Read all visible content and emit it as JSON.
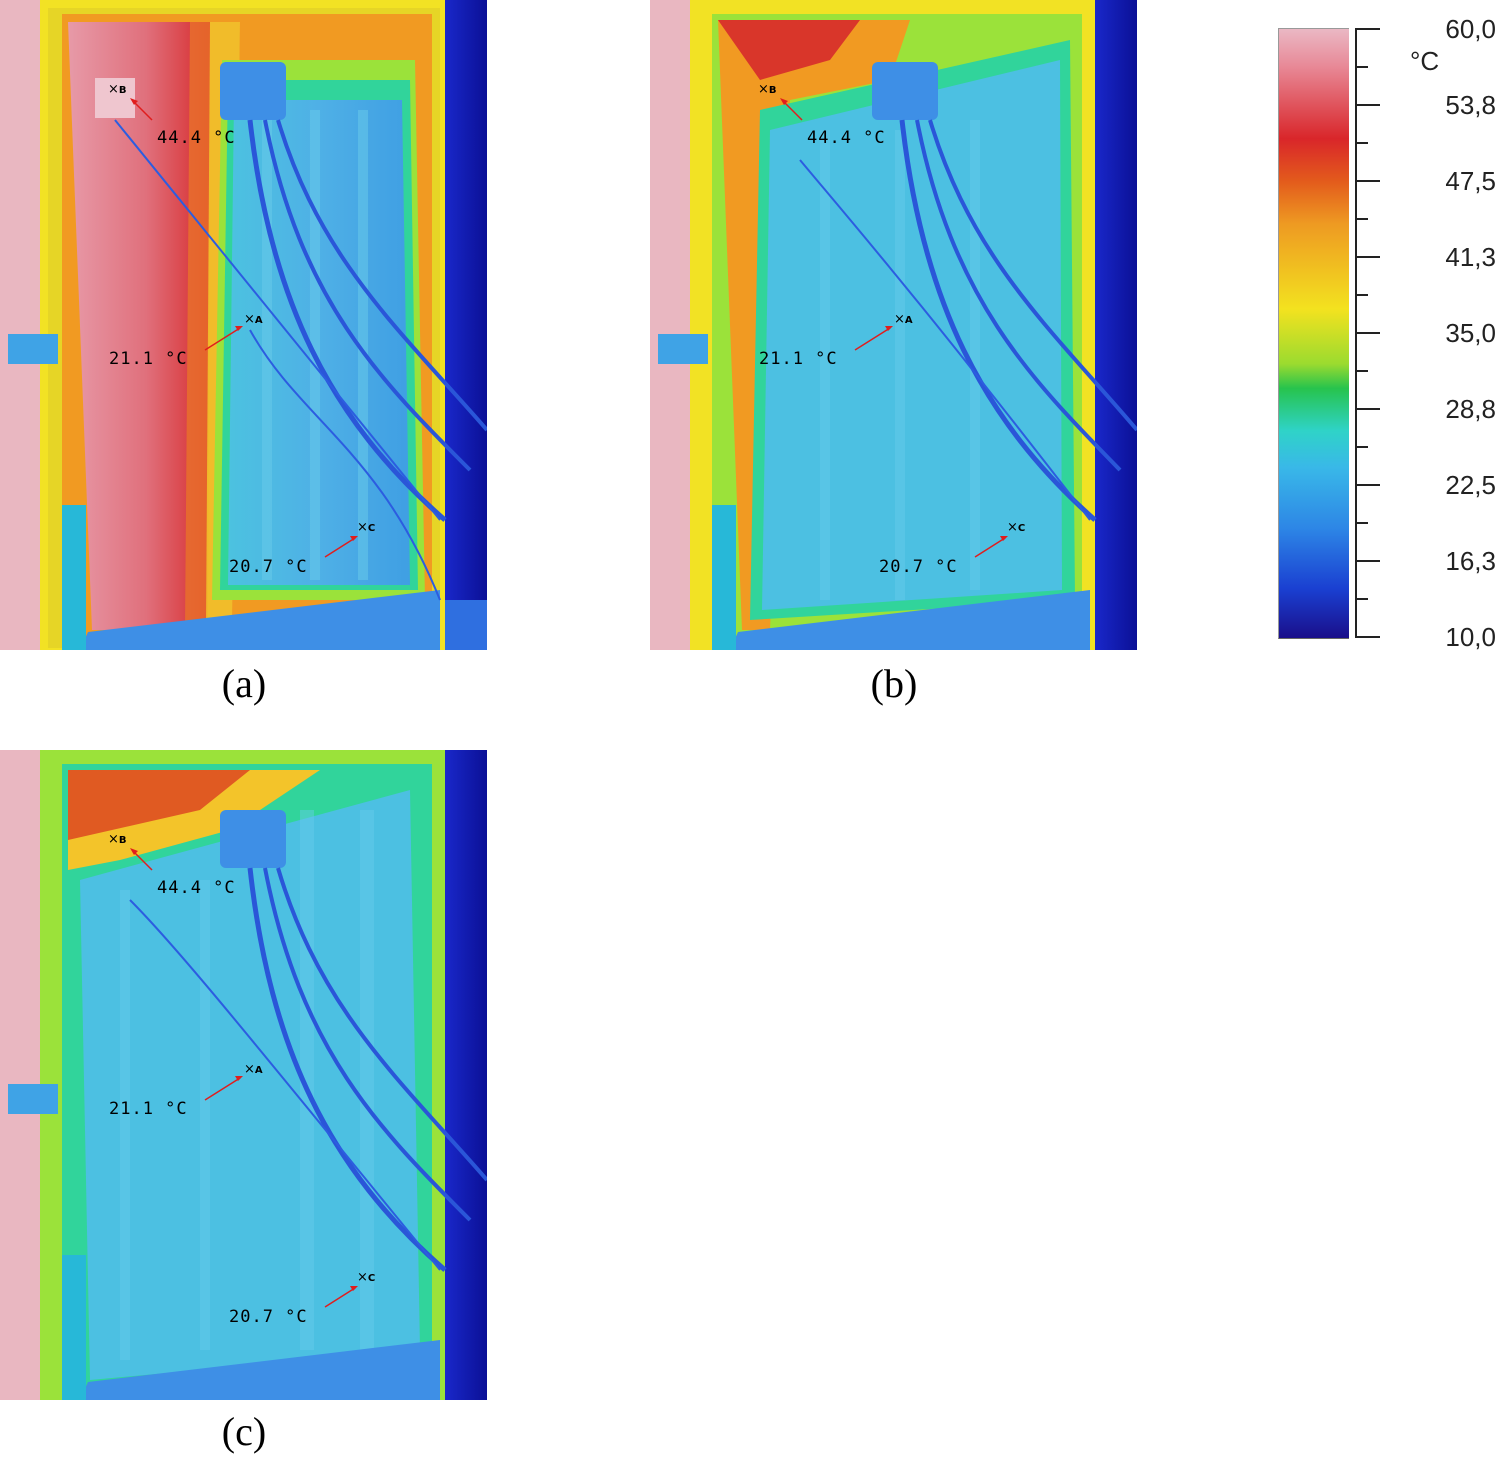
{
  "colorbar": {
    "unit": "°C",
    "labels": [
      "60,0",
      "53,8",
      "47,5",
      "41,3",
      "35,0",
      "28,8",
      "22,5",
      "16,3",
      "10,0"
    ],
    "min": 10.0,
    "max": 60.0,
    "colors": [
      "#eab8c4",
      "#d9262a",
      "#ee9a22",
      "#f3e21f",
      "#27c34d",
      "#39b8e8",
      "#2d86e6",
      "#1a0f8a"
    ]
  },
  "panels": [
    {
      "caption": "(a)",
      "points": [
        {
          "id": "B",
          "temp": "44.4 °C"
        },
        {
          "id": "A",
          "temp": "21.1 °C"
        },
        {
          "id": "C",
          "temp": "20.7 °C"
        }
      ]
    },
    {
      "caption": "(b)",
      "points": [
        {
          "id": "B",
          "temp": "44.4 °C"
        },
        {
          "id": "A",
          "temp": "21.1 °C"
        },
        {
          "id": "C",
          "temp": "20.7 °C"
        }
      ]
    },
    {
      "caption": "(c)",
      "points": [
        {
          "id": "B",
          "temp": "44.4 °C"
        },
        {
          "id": "A",
          "temp": "21.1 °C"
        },
        {
          "id": "C",
          "temp": "20.7 °C"
        }
      ]
    }
  ]
}
